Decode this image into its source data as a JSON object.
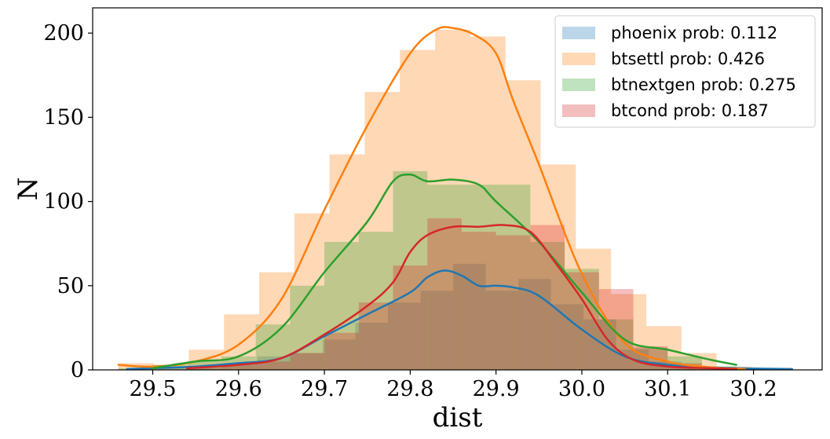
{
  "chart_data": {
    "type": "histogram+kde",
    "title": "",
    "xlabel": "dist",
    "ylabel": "N",
    "xlim": [
      29.43,
      30.28
    ],
    "ylim": [
      0,
      215
    ],
    "xticks": [
      29.5,
      29.6,
      29.7,
      29.8,
      29.9,
      30.0,
      30.1,
      30.2
    ],
    "xtick_labels": [
      "29.5",
      "29.6",
      "29.7",
      "29.8",
      "29.9",
      "30.0",
      "30.1",
      "30.2"
    ],
    "yticks": [
      0,
      50,
      100,
      150,
      200
    ],
    "ytick_labels": [
      "0",
      "50",
      "100",
      "150",
      "200"
    ],
    "grid": false,
    "legend_position": "top-right",
    "series": [
      {
        "name": "phoenix prob: 0.112",
        "color": "#1f77b4",
        "bin_edges": [
          29.47,
          29.508,
          29.546,
          29.584,
          29.622,
          29.66,
          29.698,
          29.736,
          29.774,
          29.812,
          29.85,
          29.888,
          29.926,
          29.964,
          30.002,
          30.04,
          30.078,
          30.116,
          30.154,
          30.192,
          30.23
        ],
        "counts": [
          1,
          1,
          2,
          4,
          8,
          10,
          18,
          28,
          40,
          47,
          63,
          47,
          54,
          39,
          30,
          12,
          5,
          2,
          1,
          1
        ],
        "kde_x": [
          29.47,
          29.5,
          29.55,
          29.6,
          29.65,
          29.7,
          29.75,
          29.8,
          29.82,
          29.84,
          29.86,
          29.88,
          29.9,
          29.92,
          29.95,
          30.0,
          30.05,
          30.1,
          30.15,
          30.2,
          30.245
        ],
        "kde_y": [
          0.5,
          1,
          2,
          4,
          7,
          20,
          33,
          46,
          55,
          59,
          56,
          50,
          50,
          49,
          44,
          24,
          8,
          3,
          1.5,
          0.8,
          0.5
        ]
      },
      {
        "name": "btsettl prob: 0.426",
        "color": "#ff7f0e",
        "bin_edges": [
          29.46,
          29.501,
          29.542,
          29.583,
          29.624,
          29.665,
          29.706,
          29.747,
          29.788,
          29.829,
          29.87,
          29.911,
          29.952,
          29.993,
          30.034,
          30.075,
          30.116,
          30.157,
          30.198
        ],
        "counts": [
          4,
          3,
          12,
          33,
          58,
          93,
          128,
          165,
          190,
          202,
          198,
          172,
          122,
          72,
          45,
          26,
          10,
          2
        ],
        "kde_x": [
          29.46,
          29.5,
          29.55,
          29.6,
          29.65,
          29.7,
          29.75,
          29.8,
          29.83,
          29.85,
          29.875,
          29.9,
          29.92,
          29.95,
          30.0,
          30.05,
          30.1,
          30.15,
          30.19
        ],
        "kde_y": [
          3,
          2,
          5,
          15,
          42,
          95,
          145,
          188,
          202,
          203,
          199,
          188,
          160,
          122,
          57,
          16,
          5,
          1.5,
          0.5
        ]
      },
      {
        "name": "btnextgen prob: 0.275",
        "color": "#2ca02c",
        "bin_edges": [
          29.46,
          29.5,
          29.54,
          29.58,
          29.62,
          29.66,
          29.7,
          29.74,
          29.78,
          29.82,
          29.86,
          29.9,
          29.94,
          29.98,
          30.02,
          30.06,
          30.1,
          30.14,
          30.18
        ],
        "counts": [
          1,
          3,
          5,
          8,
          27,
          50,
          76,
          82,
          118,
          110,
          110,
          110,
          76,
          60,
          30,
          13,
          8,
          2
        ],
        "kde_x": [
          29.5,
          29.55,
          29.6,
          29.65,
          29.7,
          29.75,
          29.78,
          29.8,
          29.82,
          29.85,
          29.88,
          29.9,
          29.95,
          30.0,
          30.05,
          30.1,
          30.15,
          30.18
        ],
        "kde_y": [
          1,
          5,
          8,
          25,
          58,
          88,
          112,
          116,
          112,
          113,
          110,
          100,
          76,
          46,
          18,
          12,
          6,
          3
        ]
      },
      {
        "name": "btcond prob: 0.187",
        "color": "#d62728",
        "bin_edges": [
          29.54,
          29.58,
          29.62,
          29.66,
          29.7,
          29.74,
          29.78,
          29.82,
          29.86,
          29.9,
          29.94,
          29.98,
          30.02,
          30.06,
          30.1,
          30.14,
          30.18
        ],
        "counts": [
          1,
          3,
          5,
          10,
          22,
          40,
          62,
          90,
          82,
          80,
          86,
          58,
          48,
          14,
          4,
          1
        ],
        "kde_x": [
          29.54,
          29.6,
          29.65,
          29.7,
          29.75,
          29.78,
          29.8,
          29.82,
          29.85,
          29.88,
          29.91,
          29.94,
          29.97,
          30.0,
          30.03,
          30.06,
          30.1,
          30.15,
          30.18
        ],
        "kde_y": [
          1,
          3,
          7,
          21,
          38,
          52,
          70,
          80,
          85,
          85,
          86,
          82,
          63,
          42,
          18,
          6,
          2,
          1,
          0.5
        ]
      }
    ]
  }
}
